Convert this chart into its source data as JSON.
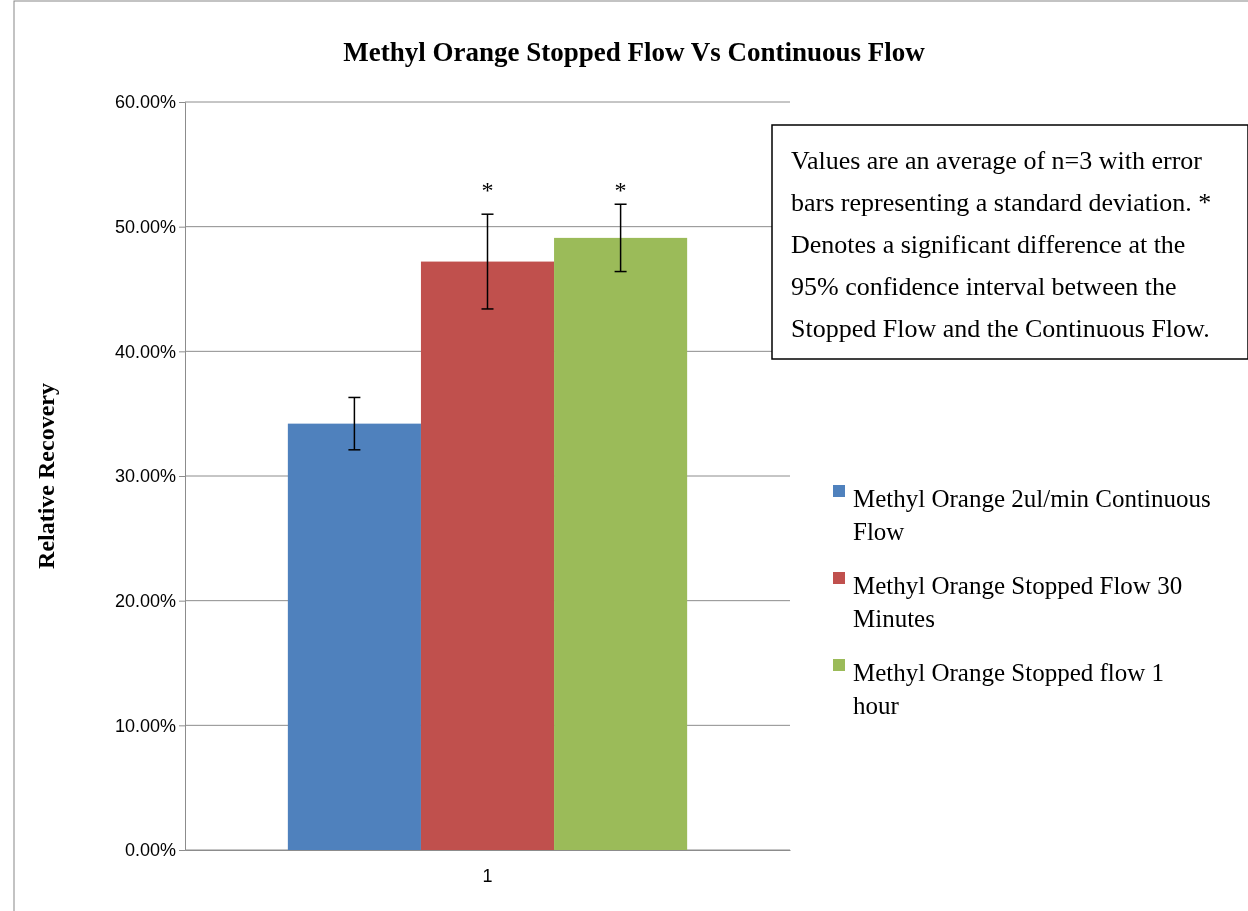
{
  "chart_data": {
    "type": "bar",
    "title": "Methyl Orange Stopped Flow Vs Continuous Flow",
    "ylabel": "Relative Recovery",
    "categories": [
      "1"
    ],
    "series": [
      {
        "name": "Methyl Orange 2ul/min Continuous Flow",
        "color": "#4f81bd",
        "values": [
          34.2
        ],
        "errors": [
          2.1
        ]
      },
      {
        "name": "Methyl Orange Stopped Flow 30 Minutes",
        "color": "#c0504d",
        "values": [
          47.2
        ],
        "errors": [
          3.8
        ]
      },
      {
        "name": "Methyl Orange Stopped flow 1 hour",
        "color": "#9bbb59",
        "values": [
          49.1
        ],
        "errors": [
          2.7
        ]
      }
    ],
    "ylim": [
      0,
      60
    ],
    "yticks": [
      {
        "value": 0,
        "label": "0.00%"
      },
      {
        "value": 10,
        "label": "10.00%"
      },
      {
        "value": 20,
        "label": "20.00%"
      },
      {
        "value": 30,
        "label": "30.00%"
      },
      {
        "value": 40,
        "label": "40.00%"
      },
      {
        "value": 50,
        "label": "50.00%"
      },
      {
        "value": 60,
        "label": "60.00%"
      }
    ],
    "grid": "y",
    "legend": "right",
    "annotations": [
      "Values are an average of n=3 with error bars representing a standard deviation. * Denotes a significant difference at the 95% confidence interval between the Stopped Flow and the Continuous Flow.",
      "*",
      "*"
    ]
  }
}
